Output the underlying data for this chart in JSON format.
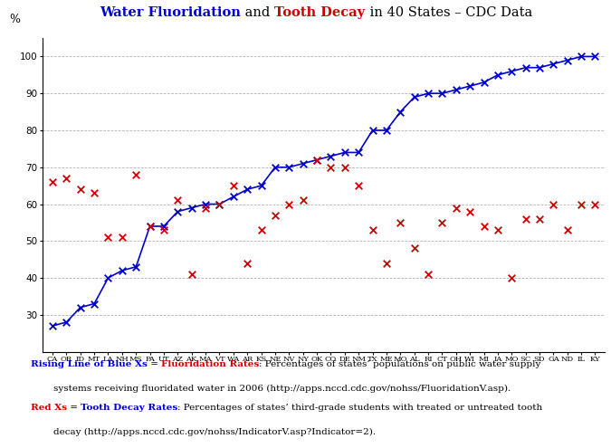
{
  "states": [
    "CA",
    "OR",
    "ID",
    "MT",
    "LA",
    "NH",
    "MS",
    "PA",
    "UT",
    "AZ",
    "AK",
    "MA",
    "VT",
    "WA",
    "AR",
    "KS",
    "NE",
    "NV",
    "NY",
    "OK",
    "CO",
    "DE",
    "NM",
    "TX",
    "ME",
    "MO",
    "AL",
    "RI",
    "CT",
    "OH",
    "WI",
    "MI",
    "IA",
    "MO",
    "SC",
    "SD",
    "GA",
    "ND",
    "IL",
    "KY"
  ],
  "fluoridation": [
    27,
    28,
    32,
    33,
    40,
    42,
    43,
    54,
    54,
    58,
    59,
    60,
    60,
    62,
    64,
    65,
    70,
    70,
    71,
    72,
    73,
    74,
    74,
    80,
    80,
    85,
    89,
    90,
    90,
    91,
    92,
    93,
    95,
    96,
    97,
    97,
    98,
    99,
    100,
    100
  ],
  "tooth_decay": [
    66,
    67,
    64,
    63,
    51,
    51,
    68,
    54,
    53,
    61,
    41,
    59,
    60,
    65,
    44,
    53,
    57,
    60,
    61,
    72,
    70,
    70,
    65,
    53,
    44,
    55,
    48,
    41,
    55,
    59,
    58,
    54,
    53,
    40,
    56,
    56,
    60,
    53,
    60,
    60
  ],
  "ylim": [
    20,
    105
  ],
  "yticks": [
    30,
    40,
    50,
    60,
    70,
    80,
    90,
    100
  ],
  "blue": "#0000cc",
  "red": "#cc0000",
  "black": "#000000",
  "grid_color": "#888888"
}
